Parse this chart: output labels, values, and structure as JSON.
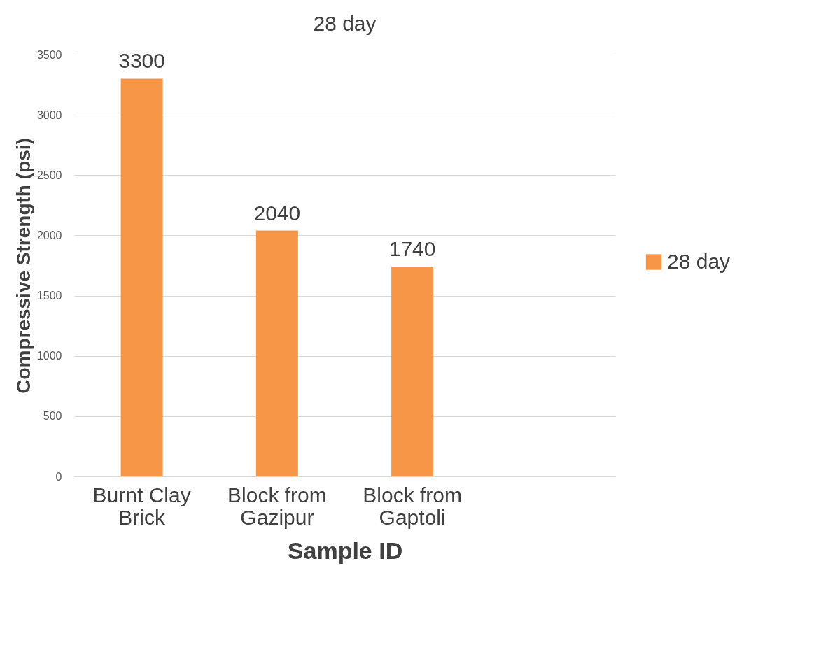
{
  "chart_data": {
    "type": "bar",
    "title": "28 day",
    "xlabel": "Sample ID",
    "ylabel": "Compressive Strength (psi)",
    "categories": [
      "Burnt Clay Brick",
      "Block from Gazipur",
      "Block from Gaptoli",
      null
    ],
    "series": [
      {
        "name": "28 day",
        "color": "#f79646",
        "values": [
          3300,
          2040,
          1740,
          null
        ]
      }
    ],
    "ylim": [
      0,
      3500
    ],
    "yticks": [
      0,
      500,
      1000,
      1500,
      2000,
      2500,
      3000,
      3500
    ],
    "grid": "y",
    "legend": "right",
    "data_labels": true
  }
}
